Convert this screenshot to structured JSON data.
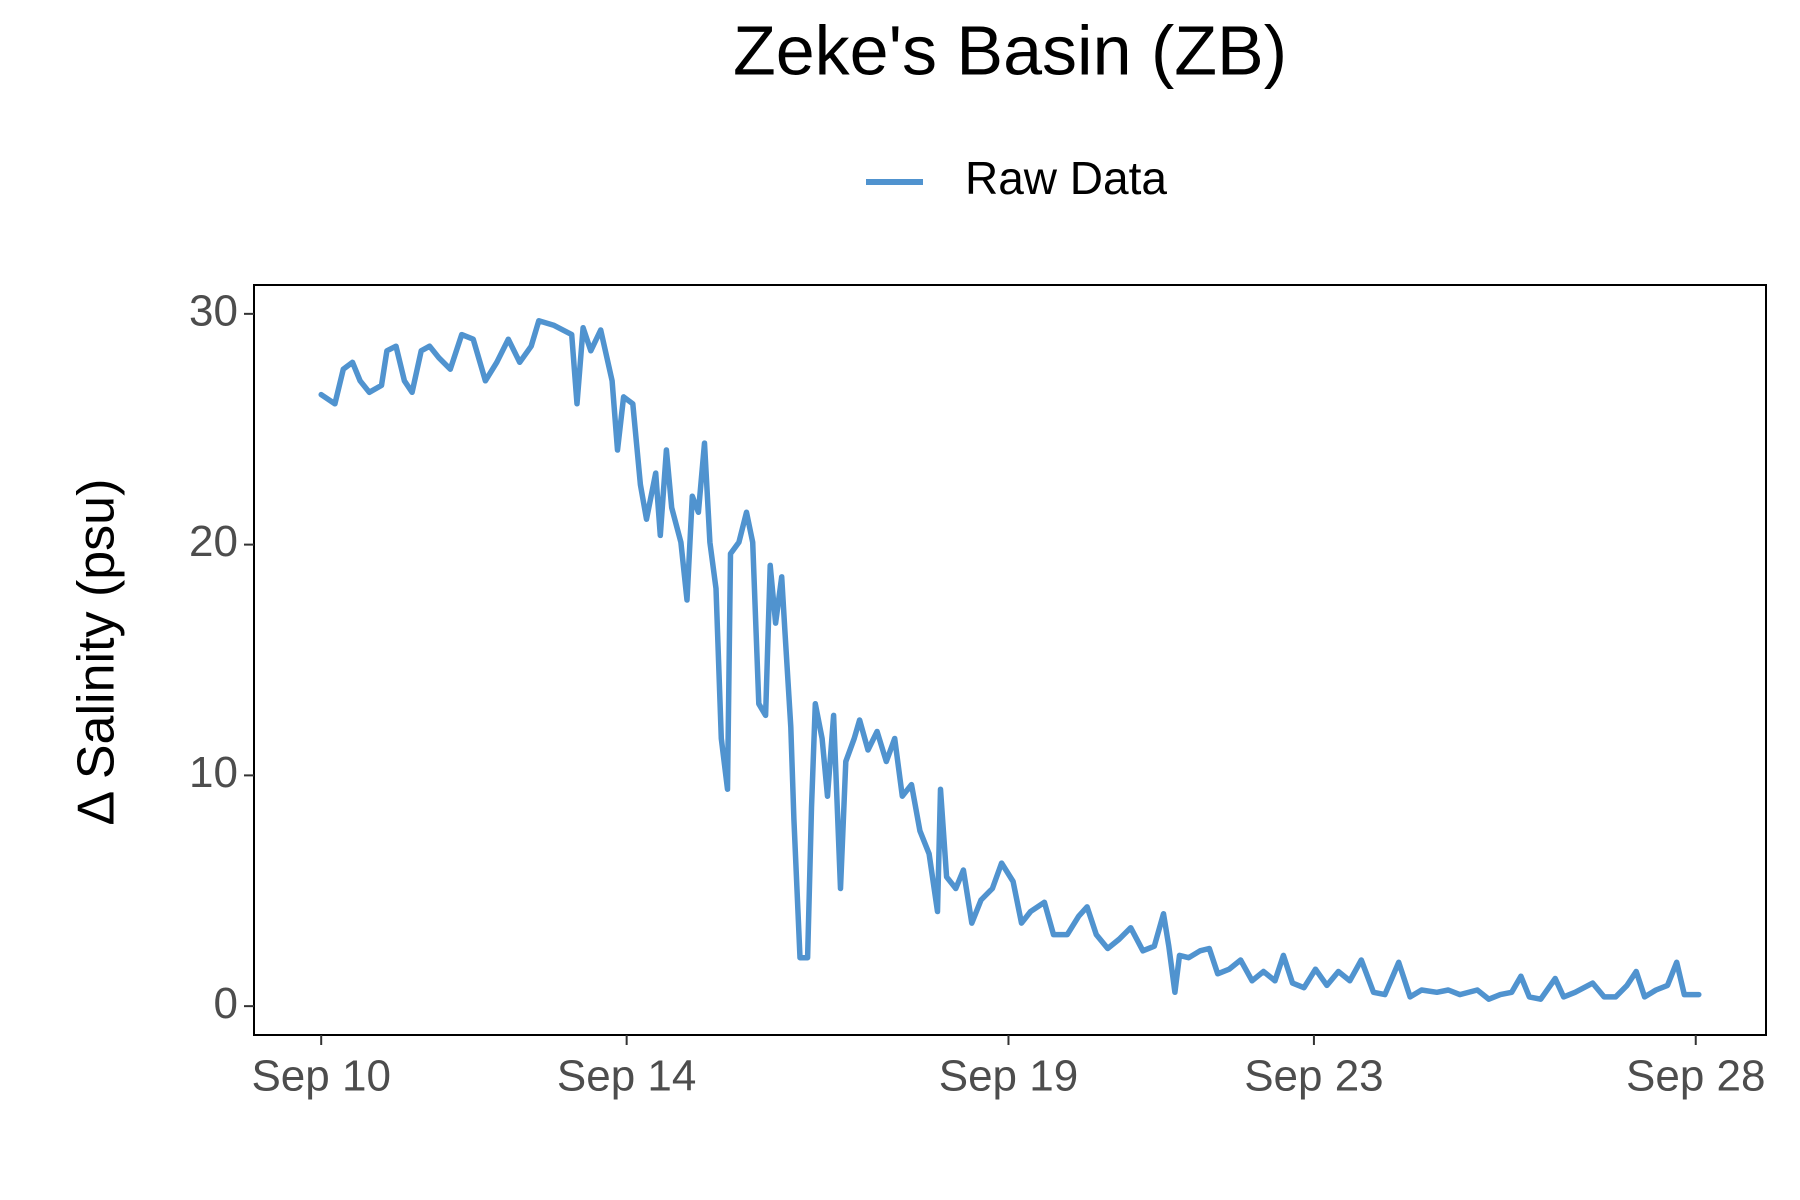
{
  "chart_data": {
    "type": "line",
    "title": "Zeke's Basin (ZB)",
    "y_label": "Δ Salinity (psu)",
    "legend": "top",
    "grid": false,
    "x": [
      10.0,
      10.18,
      10.29,
      10.41,
      10.51,
      10.63,
      10.79,
      10.86,
      10.98,
      11.09,
      11.19,
      11.31,
      11.42,
      11.54,
      11.69,
      11.84,
      11.99,
      12.15,
      12.3,
      12.45,
      12.6,
      12.75,
      12.85,
      13.05,
      13.28,
      13.35,
      13.43,
      13.53,
      13.66,
      13.81,
      13.88,
      13.96,
      14.08,
      14.18,
      14.26,
      14.38,
      14.44,
      14.52,
      14.59,
      14.71,
      14.79,
      14.86,
      14.94,
      15.02,
      15.09,
      15.17,
      15.24,
      15.32,
      15.36,
      15.47,
      15.57,
      15.65,
      15.73,
      15.82,
      15.88,
      15.95,
      16.03,
      16.07,
      16.15,
      16.19,
      16.27,
      16.37,
      16.42,
      16.47,
      16.56,
      16.63,
      16.71,
      16.8,
      16.87,
      16.98,
      17.05,
      17.16,
      17.28,
      17.4,
      17.51,
      17.61,
      17.73,
      17.84,
      17.96,
      18.07,
      18.11,
      18.19,
      18.31,
      18.41,
      18.52,
      18.64,
      18.79,
      18.91,
      19.06,
      19.17,
      19.29,
      19.47,
      19.59,
      19.77,
      19.92,
      20.03,
      20.15,
      20.3,
      20.45,
      20.6,
      20.76,
      20.91,
      21.03,
      21.1,
      21.18,
      21.24,
      21.36,
      21.51,
      21.63,
      21.74,
      21.89,
      22.04,
      22.19,
      22.34,
      22.49,
      22.6,
      22.72,
      22.87,
      23.02,
      23.17,
      23.32,
      23.47,
      23.62,
      23.78,
      23.93,
      24.11,
      24.26,
      24.41,
      24.61,
      24.76,
      24.91,
      25.14,
      25.29,
      25.44,
      25.59,
      25.71,
      25.82,
      25.97,
      26.16,
      26.27,
      26.42,
      26.65,
      26.8,
      26.95,
      27.1,
      27.22,
      27.33,
      27.48,
      27.63,
      27.75,
      27.85,
      28.04
    ],
    "series": [
      {
        "name": "Raw Data",
        "color": "#5093cf",
        "values": [
          26.5,
          26.1,
          27.6,
          27.9,
          27.1,
          26.6,
          26.9,
          28.4,
          28.6,
          27.1,
          26.6,
          28.4,
          28.6,
          28.1,
          27.6,
          29.1,
          28.9,
          27.1,
          27.9,
          28.9,
          27.9,
          28.6,
          29.7,
          29.5,
          29.1,
          26.1,
          29.4,
          28.4,
          29.3,
          27.1,
          24.1,
          26.4,
          26.1,
          22.6,
          21.1,
          23.1,
          20.4,
          24.1,
          21.6,
          20.1,
          17.6,
          22.1,
          21.4,
          24.4,
          20.1,
          18.1,
          11.6,
          9.4,
          19.6,
          20.1,
          21.4,
          20.1,
          13.1,
          12.6,
          19.1,
          16.6,
          18.6,
          16.4,
          12.1,
          8.1,
          2.1,
          2.1,
          8.6,
          13.1,
          11.6,
          9.1,
          12.6,
          5.1,
          10.6,
          11.6,
          12.4,
          11.1,
          11.9,
          10.6,
          11.6,
          9.1,
          9.6,
          7.6,
          6.6,
          4.1,
          9.4,
          5.6,
          5.1,
          5.9,
          3.6,
          4.6,
          5.1,
          6.2,
          5.4,
          3.6,
          4.1,
          4.5,
          3.1,
          3.1,
          3.9,
          4.3,
          3.1,
          2.5,
          2.9,
          3.4,
          2.4,
          2.6,
          4.0,
          2.6,
          0.6,
          2.2,
          2.1,
          2.4,
          2.5,
          1.4,
          1.6,
          2.0,
          1.1,
          1.5,
          1.1,
          2.2,
          1.0,
          0.8,
          1.6,
          0.9,
          1.5,
          1.1,
          2.0,
          0.6,
          0.5,
          1.9,
          0.4,
          0.7,
          0.6,
          0.7,
          0.5,
          0.7,
          0.3,
          0.5,
          0.6,
          1.3,
          0.4,
          0.3,
          1.2,
          0.4,
          0.6,
          1.0,
          0.4,
          0.4,
          0.9,
          1.5,
          0.4,
          0.7,
          0.9,
          1.9,
          0.5,
          0.5
        ]
      }
    ],
    "xlim": [
      9.12,
      28.92
    ],
    "xticks": [
      {
        "value": 10,
        "label": "Sep 10"
      },
      {
        "value": 14,
        "label": "Sep 14"
      },
      {
        "value": 19,
        "label": "Sep 19"
      },
      {
        "value": 23,
        "label": "Sep 23"
      },
      {
        "value": 28,
        "label": "Sep 28"
      }
    ],
    "ylim": [
      -1.25,
      31.25
    ],
    "yticks": [
      0,
      10,
      20,
      30
    ]
  }
}
